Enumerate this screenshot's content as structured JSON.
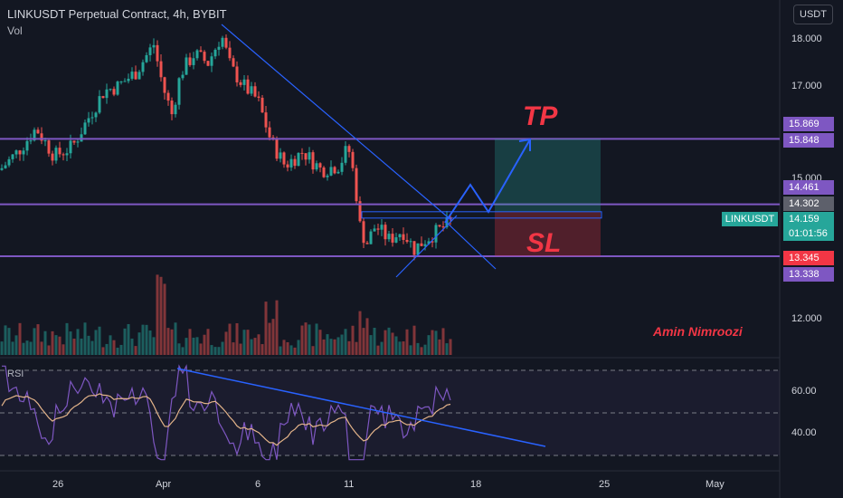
{
  "header": {
    "title": "LINKUSDT Perpetual Contract, 4h, BYBIT",
    "volume_label": "Vol",
    "currency": "USDT"
  },
  "chart_data": {
    "type": "candlestick",
    "symbol": "LINKUSDT",
    "interval": "4h",
    "price_axis_ticks": [
      "18.000",
      "17.000",
      "15.000",
      "12.000"
    ],
    "date_axis_ticks": [
      "26",
      "Apr",
      "6",
      "11",
      "18",
      "25",
      "May"
    ],
    "price_levels": {
      "upper_resistance_a": "15.869",
      "upper_resistance_b": "15.848",
      "mid_a": "14.461",
      "mid_b": "14.302",
      "current": "14.159",
      "countdown": "01:01:56",
      "support_a": "13.345",
      "support_b": "13.338"
    },
    "annotations": {
      "take_profit": "TP",
      "stop_loss": "SL",
      "author": "Amin Nimroozi"
    },
    "rsi": {
      "label": "RSI",
      "ticks": [
        "60.00",
        "40.00"
      ]
    },
    "colors": {
      "up": "#26a69a",
      "down": "#ef5350",
      "level": "#7e57c2",
      "trend": "#2962ff",
      "rsi": "#7e57c2",
      "rsi_ma": "#e4b48a"
    }
  }
}
